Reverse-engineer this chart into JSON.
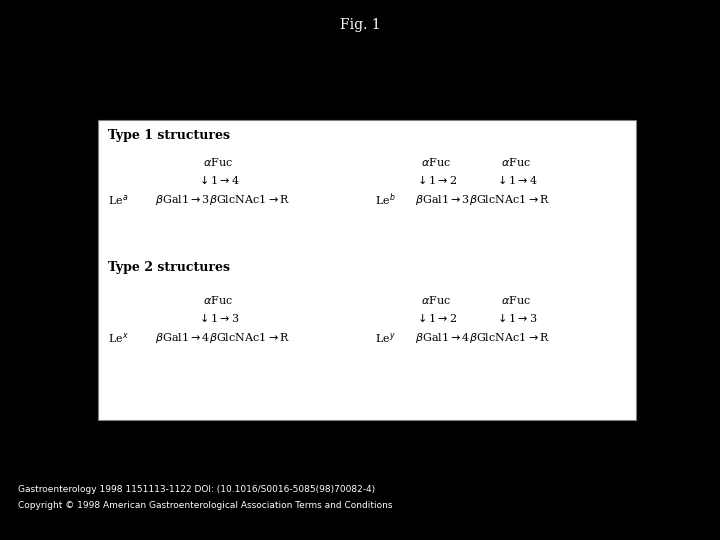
{
  "title": "Fig. 1",
  "background_color": "#000000",
  "box_background": "#ffffff",
  "box_edge_color": "#808080",
  "title_color": "#ffffff",
  "title_fontsize": 10,
  "footer_line1": "Gastroenterology 1998 1151113-1122 DOI: (10.1016/S0016-5085(98)70082-4)",
  "footer_line2": "Copyright © 1998 American Gastroenterological Association Terms and Conditions",
  "footer_color": "#ffffff",
  "footer_fontsize": 6.5,
  "type1_header": "Type 1 structures",
  "type2_header": "Type 2 structures",
  "header_fontsize": 9,
  "content_fontsize": 8
}
